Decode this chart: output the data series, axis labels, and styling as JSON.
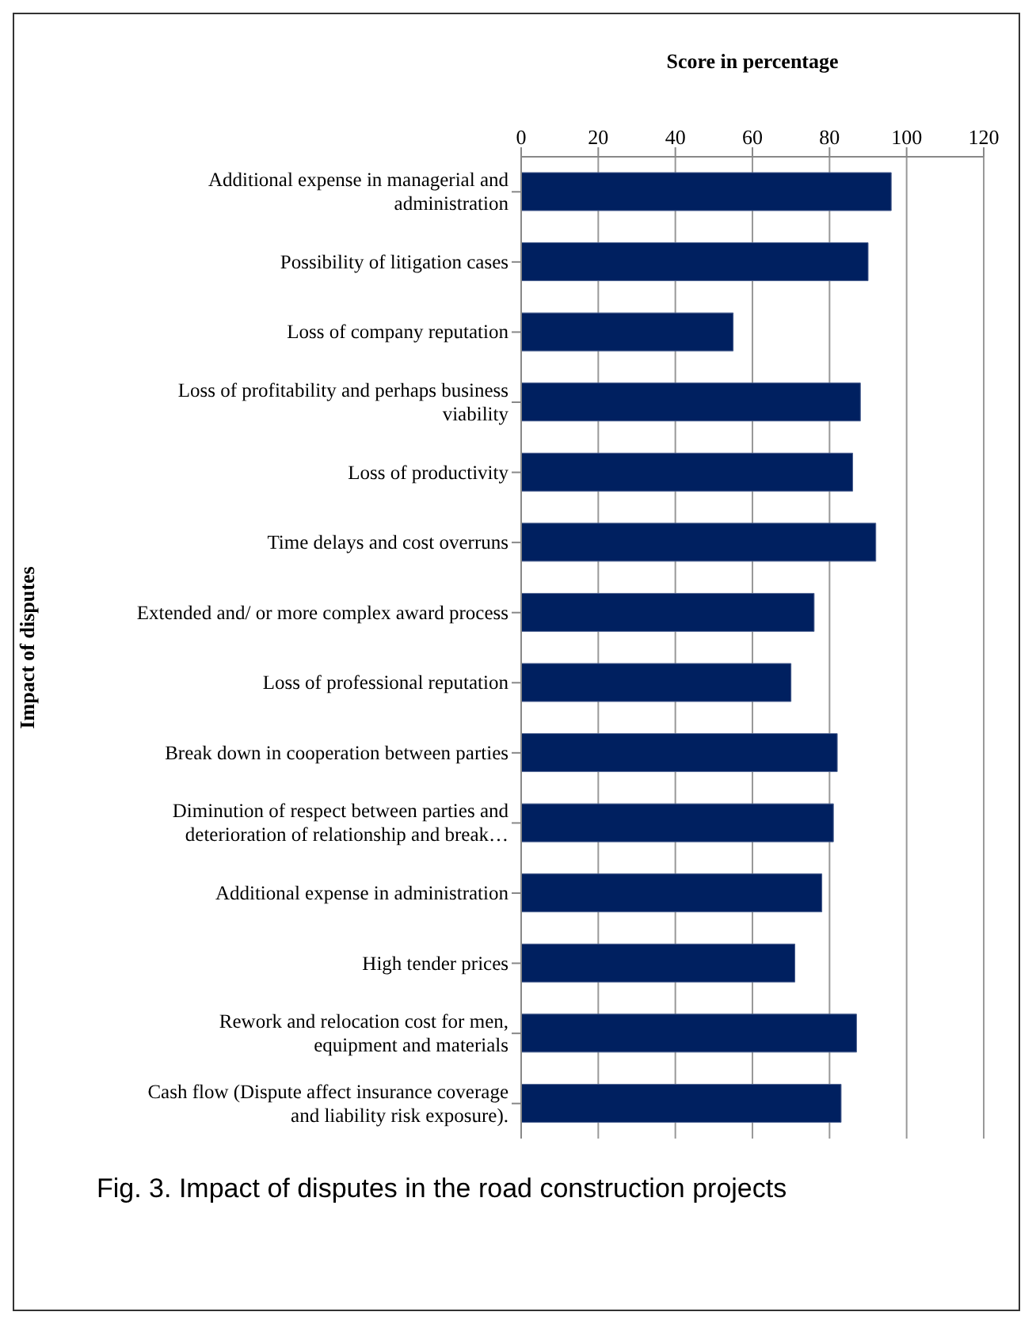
{
  "chart_data": {
    "type": "bar",
    "orientation": "horizontal",
    "xlabel": "Score in percentage",
    "ylabel": "Impact of disputes",
    "categories": [
      "Additional expense in managerial and administration",
      "Possibility of litigation cases",
      "Loss of company reputation",
      "Loss of profitability and perhaps business viability",
      "Loss of productivity",
      "Time delays and cost overruns",
      "Extended and/ or more complex award process",
      "Loss of professional reputation",
      "Break down in cooperation between parties",
      "Diminution of respect between parties and deterioration of relationship and break…",
      "Additional expense in administration",
      "High tender prices",
      "Rework and relocation cost for men, equipment and materials",
      "Cash flow (Dispute affect insurance coverage and liability risk exposure)."
    ],
    "values": [
      96,
      90,
      55,
      88,
      86,
      92,
      76,
      70,
      82,
      81,
      78,
      71,
      87,
      83
    ],
    "color": "#002060",
    "xlim": [
      0,
      120
    ],
    "xticks": [
      0,
      20,
      40,
      60,
      80,
      100,
      120
    ],
    "grid": "x",
    "annotations": [
      "Fig. 3. Impact of disputes in the road construction projects"
    ]
  }
}
